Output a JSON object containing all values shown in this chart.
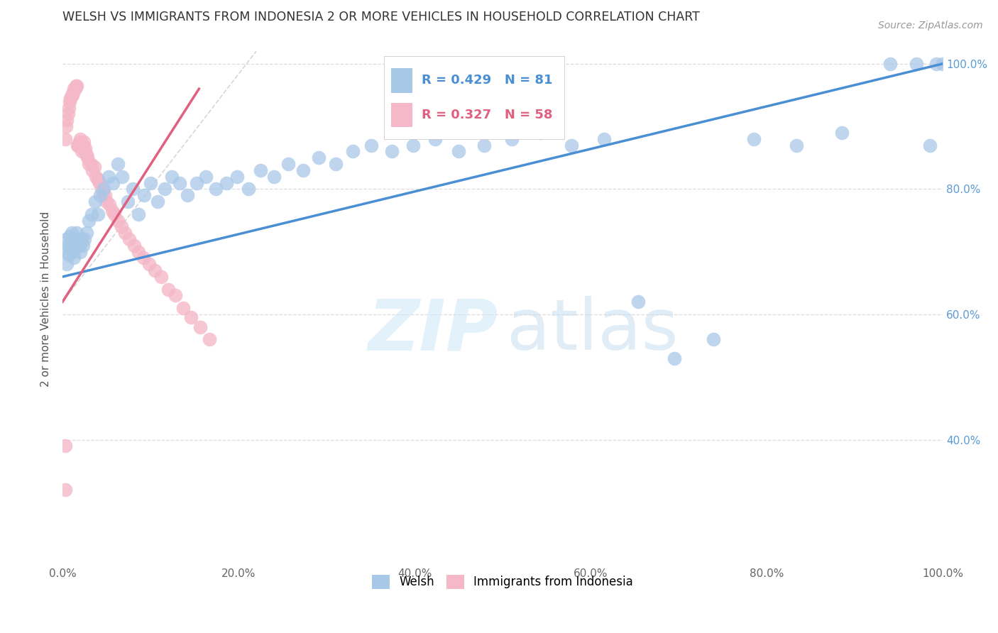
{
  "title": "WELSH VS IMMIGRANTS FROM INDONESIA 2 OR MORE VEHICLES IN HOUSEHOLD CORRELATION CHART",
  "source": "Source: ZipAtlas.com",
  "ylabel": "2 or more Vehicles in Household",
  "xlim": [
    0.0,
    1.0
  ],
  "ylim": [
    0.2,
    1.05
  ],
  "xtick_labels": [
    "0.0%",
    "20.0%",
    "40.0%",
    "60.0%",
    "80.0%",
    "100.0%"
  ],
  "xtick_values": [
    0.0,
    0.2,
    0.4,
    0.6,
    0.8,
    1.0
  ],
  "ytick_labels": [
    "40.0%",
    "60.0%",
    "80.0%",
    "100.0%"
  ],
  "ytick_values": [
    0.4,
    0.6,
    0.8,
    1.0
  ],
  "welsh_color": "#a8c8e8",
  "indonesia_color": "#f4b8c8",
  "welsh_R": 0.429,
  "welsh_N": 81,
  "indonesia_R": 0.327,
  "indonesia_N": 58,
  "welsh_line_color": "#4a8fd4",
  "indonesia_line_color": "#e06080",
  "background_color": "#ffffff",
  "grid_color": "#dddddd",
  "right_tick_color": "#5b9bd5",
  "watermark_zip_color": "#d0e8f8",
  "watermark_atlas_color": "#c8dff0",
  "ref_line_color": "#cccccc",
  "welsh_x": [
    0.003,
    0.004,
    0.005,
    0.006,
    0.007,
    0.008,
    0.009,
    0.01,
    0.01,
    0.011,
    0.012,
    0.012,
    0.013,
    0.013,
    0.014,
    0.015,
    0.015,
    0.016,
    0.017,
    0.018,
    0.019,
    0.02,
    0.021,
    0.022,
    0.023,
    0.025,
    0.027,
    0.03,
    0.033,
    0.037,
    0.04,
    0.043,
    0.047,
    0.052,
    0.057,
    0.063,
    0.068,
    0.074,
    0.08,
    0.086,
    0.093,
    0.1,
    0.108,
    0.116,
    0.124,
    0.133,
    0.142,
    0.152,
    0.163,
    0.174,
    0.186,
    0.198,
    0.211,
    0.225,
    0.24,
    0.256,
    0.273,
    0.291,
    0.31,
    0.33,
    0.351,
    0.374,
    0.398,
    0.423,
    0.45,
    0.479,
    0.51,
    0.543,
    0.578,
    0.615,
    0.654,
    0.695,
    0.739,
    0.785,
    0.834,
    0.885,
    0.94,
    0.97,
    0.985,
    0.993,
    1.0
  ],
  "welsh_y": [
    0.7,
    0.72,
    0.68,
    0.71,
    0.695,
    0.725,
    0.705,
    0.73,
    0.715,
    0.71,
    0.72,
    0.7,
    0.715,
    0.69,
    0.71,
    0.72,
    0.705,
    0.73,
    0.715,
    0.72,
    0.71,
    0.7,
    0.715,
    0.72,
    0.71,
    0.72,
    0.73,
    0.75,
    0.76,
    0.78,
    0.76,
    0.79,
    0.8,
    0.82,
    0.81,
    0.84,
    0.82,
    0.78,
    0.8,
    0.76,
    0.79,
    0.81,
    0.78,
    0.8,
    0.82,
    0.81,
    0.79,
    0.81,
    0.82,
    0.8,
    0.81,
    0.82,
    0.8,
    0.83,
    0.82,
    0.84,
    0.83,
    0.85,
    0.84,
    0.86,
    0.87,
    0.86,
    0.87,
    0.88,
    0.86,
    0.87,
    0.88,
    0.89,
    0.87,
    0.88,
    0.62,
    0.53,
    0.56,
    0.88,
    0.87,
    0.89,
    1.0,
    1.0,
    0.87,
    1.0,
    1.0
  ],
  "indonesia_x": [
    0.003,
    0.004,
    0.005,
    0.006,
    0.007,
    0.008,
    0.009,
    0.01,
    0.011,
    0.012,
    0.013,
    0.014,
    0.015,
    0.016,
    0.017,
    0.018,
    0.019,
    0.02,
    0.021,
    0.022,
    0.023,
    0.024,
    0.025,
    0.026,
    0.027,
    0.028,
    0.03,
    0.032,
    0.034,
    0.036,
    0.038,
    0.04,
    0.042,
    0.044,
    0.046,
    0.048,
    0.05,
    0.053,
    0.056,
    0.059,
    0.063,
    0.067,
    0.071,
    0.076,
    0.081,
    0.086,
    0.092,
    0.098,
    0.105,
    0.112,
    0.12,
    0.128,
    0.137,
    0.146,
    0.156,
    0.167,
    0.003,
    0.003
  ],
  "indonesia_y": [
    0.88,
    0.9,
    0.91,
    0.92,
    0.93,
    0.94,
    0.945,
    0.95,
    0.95,
    0.955,
    0.96,
    0.96,
    0.965,
    0.965,
    0.87,
    0.87,
    0.875,
    0.88,
    0.87,
    0.86,
    0.87,
    0.875,
    0.86,
    0.865,
    0.855,
    0.85,
    0.84,
    0.84,
    0.83,
    0.835,
    0.82,
    0.815,
    0.81,
    0.8,
    0.795,
    0.79,
    0.78,
    0.775,
    0.765,
    0.76,
    0.75,
    0.74,
    0.73,
    0.72,
    0.71,
    0.7,
    0.69,
    0.68,
    0.67,
    0.66,
    0.64,
    0.63,
    0.61,
    0.595,
    0.58,
    0.56,
    0.39,
    0.32
  ],
  "welsh_line_x": [
    0.0,
    1.0
  ],
  "welsh_line_y": [
    0.66,
    1.0
  ],
  "indonesia_line_x": [
    0.0,
    0.155
  ],
  "indonesia_line_y": [
    0.62,
    0.96
  ],
  "ref_line_x": [
    0.0,
    0.22
  ],
  "ref_line_y": [
    0.62,
    1.02
  ]
}
